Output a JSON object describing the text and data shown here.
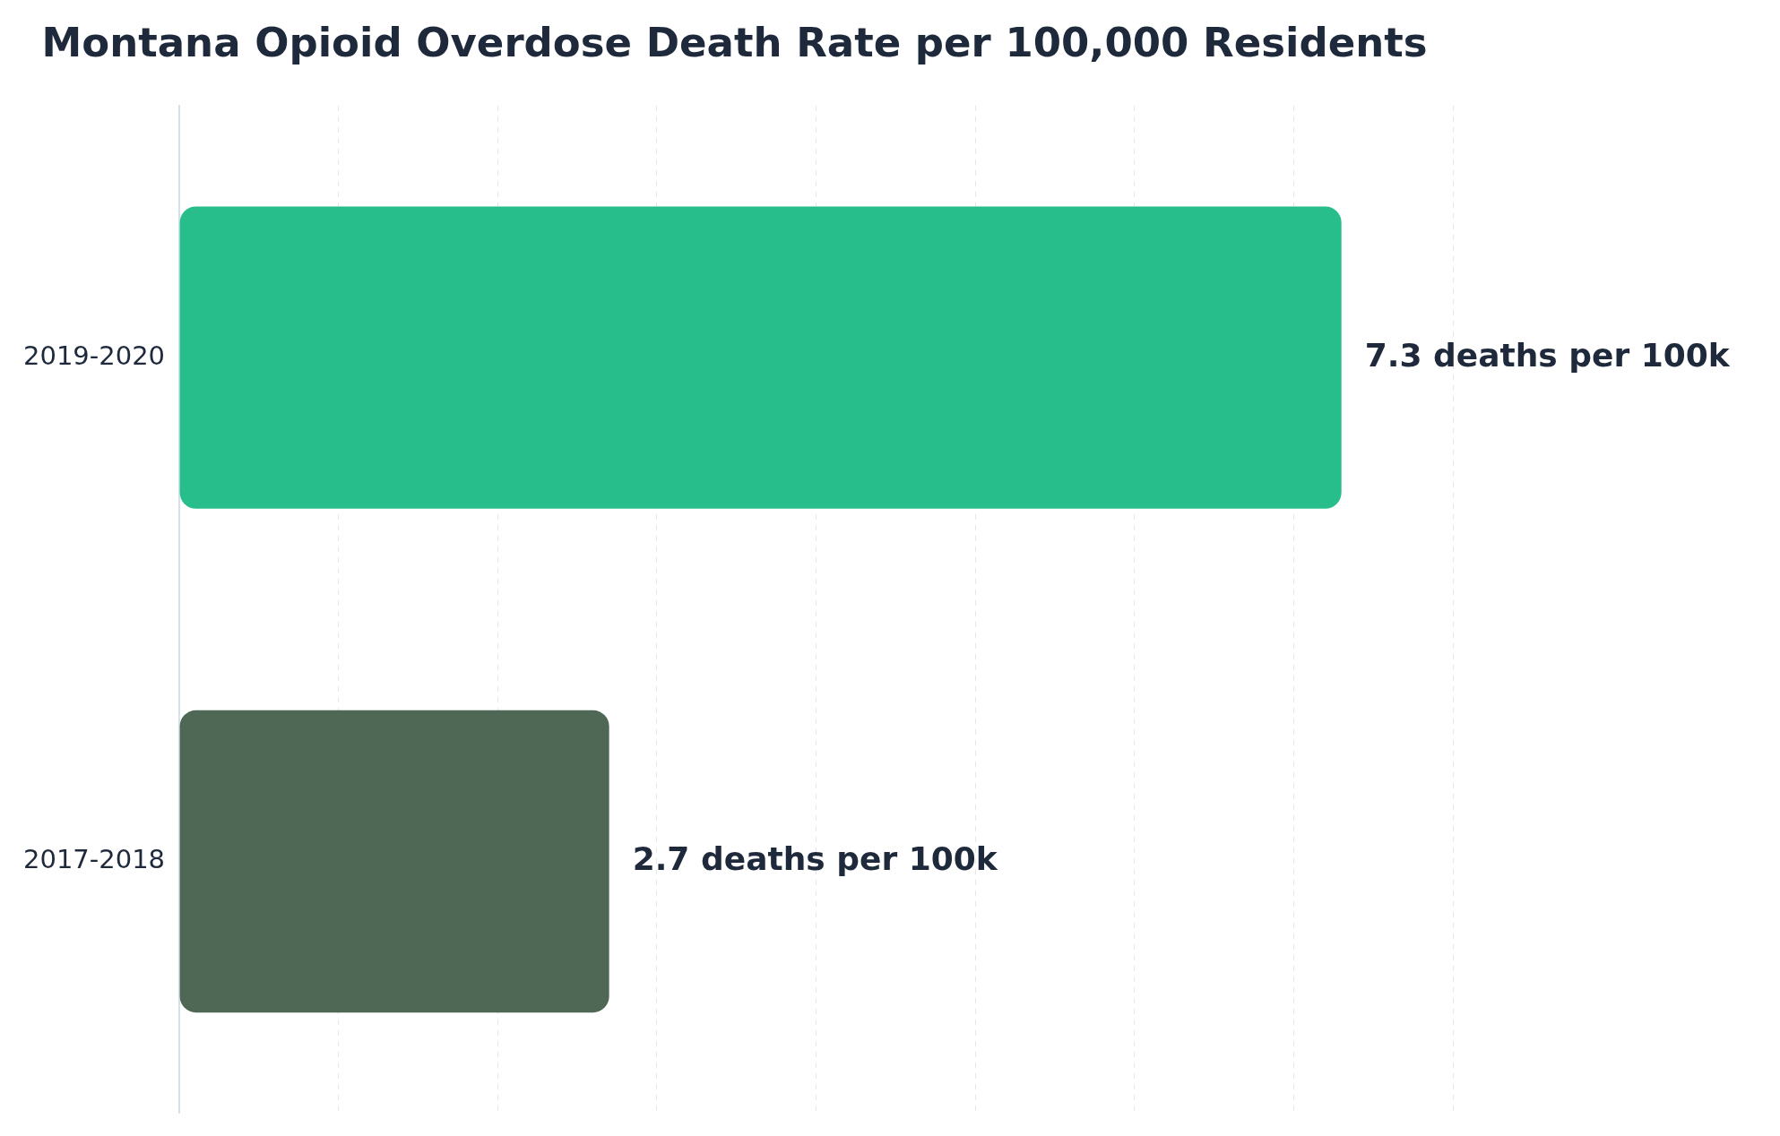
{
  "chart_data": {
    "type": "bar",
    "orientation": "horizontal",
    "title": "Montana Opioid Overdose Death Rate per 100,000 Residents",
    "categories": [
      "2019-2020",
      "2017-2018"
    ],
    "values": [
      7.3,
      2.7
    ],
    "colors": [
      "#27be8c",
      "#4f6856"
    ],
    "value_labels": [
      "7.3 deaths per 100k",
      "2.7 deaths per 100k"
    ],
    "xticks": [
      {
        "value": 0,
        "label": null
      },
      {
        "value": 1,
        "label": null
      },
      {
        "value": 2,
        "label": null
      },
      {
        "value": 3,
        "label": null
      },
      {
        "value": 4,
        "label": null
      },
      {
        "value": 5,
        "label": null
      },
      {
        "value": 6,
        "label": null
      },
      {
        "value": 7,
        "label": null
      },
      {
        "value": 8,
        "label": null
      }
    ],
    "tick_labels": "y",
    "grid": "x",
    "legend": false
  }
}
